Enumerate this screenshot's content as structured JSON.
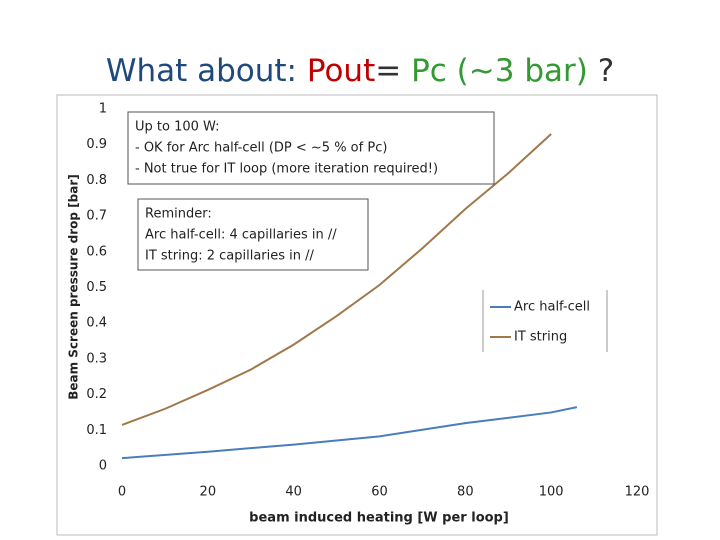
{
  "title_parts": [
    "What about:",
    "Pout",
    "=",
    "Pc (~3 bar)",
    "?"
  ],
  "chart_data": {
    "type": "line",
    "x_label": "beam induced heating [W per  loop]",
    "y_label": "Beam Screen pressure drop [bar]",
    "xlim": [
      0,
      120
    ],
    "xticks": [
      0,
      20,
      40,
      60,
      80,
      100,
      120
    ],
    "ylim": [
      0,
      1
    ],
    "yticks": [
      0,
      0.1,
      0.2,
      0.3,
      0.4,
      0.5,
      0.6,
      0.7,
      0.8,
      0.9,
      1
    ],
    "grid": false,
    "legend": "right",
    "series": [
      {
        "name": "Arc half-cell",
        "color": "#4a7ebb",
        "x": [
          0,
          20,
          40,
          60,
          80,
          100,
          106
        ],
        "values": [
          0.022,
          0.04,
          0.06,
          0.083,
          0.12,
          0.15,
          0.165
        ]
      },
      {
        "name": "IT string",
        "color": "#a0784a",
        "x": [
          0,
          10,
          20,
          30,
          40,
          50,
          60,
          70,
          80,
          90,
          100
        ],
        "values": [
          0.115,
          0.16,
          0.213,
          0.27,
          0.34,
          0.42,
          0.507,
          0.61,
          0.72,
          0.82,
          0.93
        ]
      }
    ],
    "annotations": [
      {
        "lines": [
          "Up to 100 W:",
          "- OK for Arc half-cell (DP < ~5 % of Pc)",
          "- Not true for IT loop (more iteration required!)"
        ]
      },
      {
        "lines": [
          "Reminder:",
          "Arc half-cell: 4 capillaries in //",
          "IT string: 2 capillaries in //"
        ]
      }
    ]
  }
}
